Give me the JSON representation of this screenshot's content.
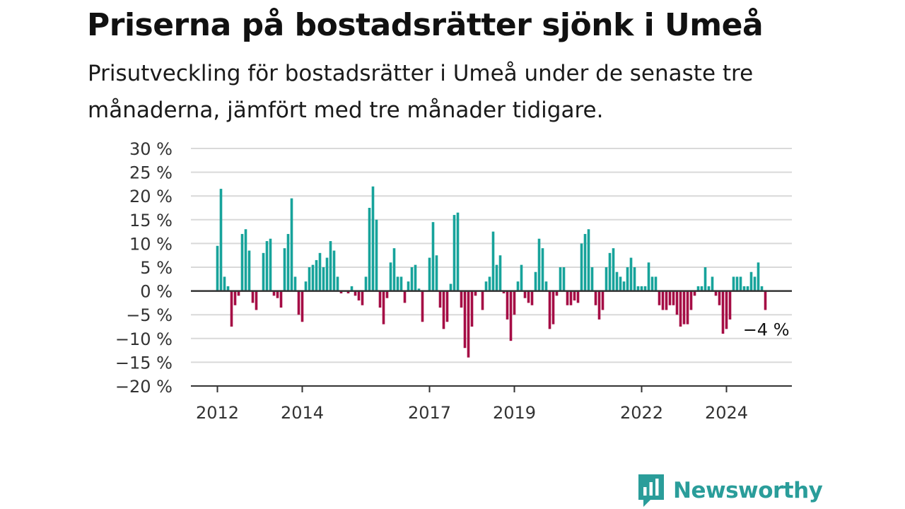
{
  "header": {
    "title": "Priserna på bostadsrätter sjönk i Umeå",
    "subtitle": "Prisutveckling för bostadsrätter i Umeå under de senaste tre månaderna, jämfört med tre månader tidigare."
  },
  "brand": {
    "name": "Newsworthy",
    "icon": "newsworthy-logo-icon",
    "color": "#2a9d9a"
  },
  "colors": {
    "positive": "#17a39b",
    "negative": "#a50c45",
    "grid": "#d9d9d9",
    "zero_line": "#333333"
  },
  "chart_data": {
    "type": "bar",
    "title": "Priserna på bostadsrätter sjönk i Umeå",
    "subtitle": "Prisutveckling för bostadsrätter i Umeå under de senaste tre månaderna, jämfört med tre månader tidigare.",
    "xlabel": "",
    "ylabel": "",
    "unit": "%",
    "ylim": [
      -20,
      30
    ],
    "y_ticks": [
      30,
      25,
      20,
      15,
      10,
      5,
      0,
      -5,
      -10,
      -15,
      -20
    ],
    "y_tick_labels": [
      "30 %",
      "25 %",
      "20 %",
      "15 %",
      "10 %",
      "5 %",
      "0 %",
      "−5 %",
      "−10 %",
      "−15 %",
      "−20 %"
    ],
    "x_start": "2012-01",
    "x_ticks": [
      {
        "month": "2012-01",
        "label": "2012"
      },
      {
        "month": "2014-01",
        "label": "2014"
      },
      {
        "month": "2017-01",
        "label": "2017"
      },
      {
        "month": "2019-01",
        "label": "2019"
      },
      {
        "month": "2022-01",
        "label": "2022"
      },
      {
        "month": "2024-01",
        "label": "2024"
      }
    ],
    "grid": true,
    "legend": "none",
    "annotation": {
      "text": "−4 %",
      "month": "2024-12",
      "value": -4
    },
    "values": [
      9.5,
      21.5,
      3,
      1,
      -7.5,
      -3,
      -1,
      12,
      13,
      8.5,
      -2.5,
      -4,
      0,
      8,
      10.5,
      11,
      -1,
      -1.5,
      -3.5,
      9,
      12,
      19.5,
      3,
      -5,
      -6.5,
      2,
      5,
      5.5,
      6.5,
      8,
      5,
      7,
      10.5,
      8.5,
      3,
      -0.5,
      0,
      -0.5,
      1,
      -1,
      -2,
      -3,
      3,
      17.5,
      22,
      15,
      -3.5,
      -7,
      -1.5,
      6,
      9,
      3,
      3,
      -2.5,
      2,
      5,
      5.5,
      0.5,
      -6.5,
      0,
      7,
      14.5,
      7.5,
      -3.5,
      -8,
      -6.5,
      1.5,
      16,
      16.5,
      -3.5,
      -12,
      -14,
      -7.5,
      -1,
      0,
      -4,
      2,
      3,
      12.5,
      5.5,
      7.5,
      -0.5,
      -6,
      -10.5,
      -5,
      2,
      5.5,
      -1.5,
      -2.5,
      -3,
      4,
      11,
      9,
      2,
      -8,
      -7,
      -1,
      5,
      5,
      -3,
      -3,
      -2,
      -2.5,
      10,
      12,
      13,
      5,
      -3,
      -6,
      -4,
      5,
      8,
      9,
      4,
      3,
      2,
      5,
      7,
      5,
      1,
      1,
      1,
      6,
      3,
      3,
      -3,
      -4,
      -4,
      -3,
      -3,
      -5,
      -7.5,
      -7,
      -7,
      -4,
      -1,
      1,
      1,
      5,
      1,
      3,
      -1,
      -3,
      -9,
      -8,
      -6,
      3,
      3,
      3,
      1,
      1,
      4,
      3,
      6,
      1,
      -4
    ]
  }
}
